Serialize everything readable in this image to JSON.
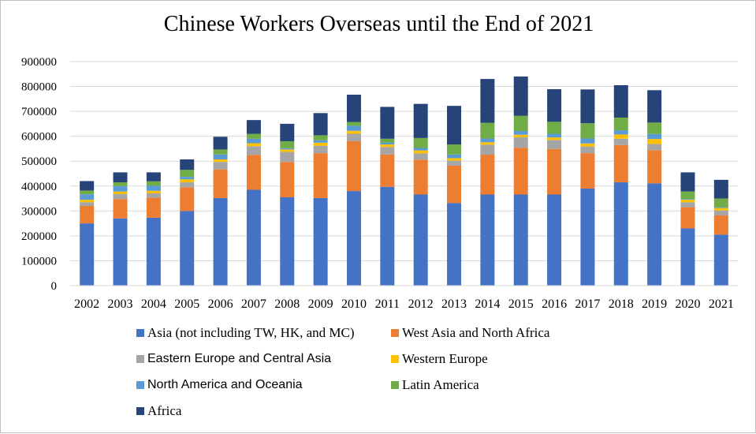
{
  "chart_data": {
    "type": "bar",
    "stacked": true,
    "title": "Chinese Workers Overseas until the End of 2021",
    "xlabel": "",
    "ylabel": "",
    "ylim": [
      0,
      900000
    ],
    "yticks": [
      0,
      100000,
      200000,
      300000,
      400000,
      500000,
      600000,
      700000,
      800000,
      900000
    ],
    "ytick_labels": [
      "0",
      "100000",
      "200000",
      "300000",
      "400000",
      "500000",
      "600000",
      "700000",
      "800000",
      "900000"
    ],
    "grid": true,
    "legend_position": "bottom",
    "categories": [
      "2002",
      "2003",
      "2004",
      "2005",
      "2006",
      "2007",
      "2008",
      "2009",
      "2010",
      "2011",
      "2012",
      "2013",
      "2014",
      "2015",
      "2016",
      "2017",
      "2018",
      "2019",
      "2020",
      "2021"
    ],
    "series": [
      {
        "name": "Asia (not including TW, HK, and MC)",
        "color": "#4472C4",
        "values": [
          250000,
          270000,
          273000,
          300000,
          352000,
          385000,
          355000,
          352000,
          380000,
          397000,
          366000,
          332000,
          366000,
          366000,
          366000,
          390000,
          415000,
          411000,
          230000,
          205000
        ]
      },
      {
        "name": "West Asia and North Africa",
        "color": "#ED7D31",
        "values": [
          70000,
          78000,
          80000,
          95000,
          115000,
          140000,
          142000,
          180000,
          200000,
          130000,
          140000,
          150000,
          160000,
          188000,
          183000,
          142000,
          150000,
          133000,
          85000,
          77000
        ]
      },
      {
        "name": "Eastern Europe and Central Asia",
        "color": "#A5A5A5",
        "values": [
          15000,
          20000,
          18000,
          20000,
          30000,
          35000,
          40000,
          30000,
          30000,
          30000,
          25000,
          20000,
          40000,
          42000,
          36000,
          27000,
          25000,
          25000,
          20000,
          20000
        ]
      },
      {
        "name": "Western Europe",
        "color": "#FFC000",
        "values": [
          10000,
          10000,
          10000,
          12000,
          10000,
          12000,
          10000,
          12000,
          12000,
          10000,
          12000,
          10000,
          10000,
          10000,
          10000,
          12000,
          17000,
          20000,
          10000,
          10000
        ]
      },
      {
        "name": "North America and Oceania",
        "color": "#5B9BD5",
        "values": [
          22000,
          22000,
          20000,
          10000,
          20000,
          18000,
          5000,
          10000,
          20000,
          8000,
          10000,
          15000,
          15000,
          15000,
          15000,
          20000,
          17000,
          20000,
          3000,
          3000
        ]
      },
      {
        "name": "Latin America",
        "color": "#70AD47",
        "values": [
          15000,
          15000,
          18000,
          28000,
          20000,
          20000,
          28000,
          20000,
          15000,
          15000,
          40000,
          40000,
          63000,
          61000,
          48000,
          61000,
          51000,
          46000,
          30000,
          35000
        ]
      },
      {
        "name": "Africa",
        "color": "#264478",
        "values": [
          38000,
          40000,
          36000,
          42000,
          51000,
          55000,
          70000,
          89000,
          110000,
          128000,
          137000,
          155000,
          176000,
          158000,
          131000,
          136000,
          130000,
          130000,
          77000,
          75000
        ]
      }
    ]
  }
}
